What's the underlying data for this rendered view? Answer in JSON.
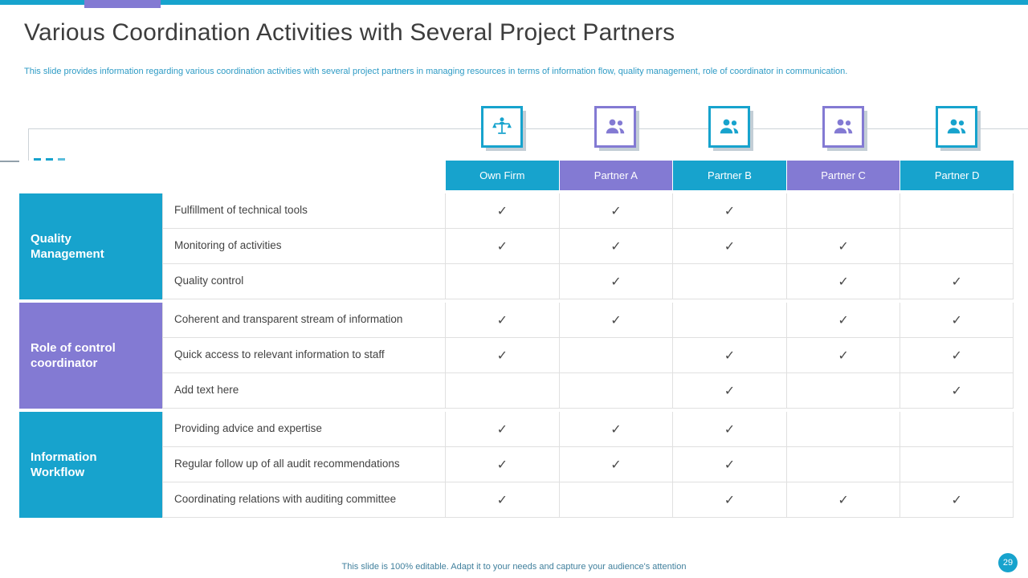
{
  "slide": {
    "title": "Various Coordination Activities with Several Project Partners",
    "subtitle": "This slide provides information regarding various coordination activities with several project partners in managing resources in terms of information flow, quality management, role of coordinator in communication.",
    "footer": "This slide is 100% editable. Adapt it to your needs and capture your audience's attention",
    "page_number": "29"
  },
  "colors": {
    "teal": "#17A3CD",
    "purple": "#837AD3",
    "subtitle_text": "#2E9BC5",
    "grid_line": "#E0E0E0",
    "check": "#4A4A4A"
  },
  "table": {
    "check_glyph": "✓",
    "columns": [
      {
        "label": "Own Firm",
        "color": "teal",
        "icon": "person-scale-icon"
      },
      {
        "label": "Partner A",
        "color": "purple",
        "icon": "people-icon"
      },
      {
        "label": "Partner B",
        "color": "teal",
        "icon": "people-icon"
      },
      {
        "label": "Partner C",
        "color": "purple",
        "icon": "people-icon"
      },
      {
        "label": "Partner D",
        "color": "teal",
        "icon": "people-icon"
      }
    ],
    "groups": [
      {
        "label": "Quality Management",
        "color": "teal",
        "rows": [
          {
            "activity": "Fulfillment of technical tools",
            "checks": [
              true,
              true,
              true,
              false,
              false
            ]
          },
          {
            "activity": "Monitoring of activities",
            "checks": [
              true,
              true,
              true,
              true,
              false
            ]
          },
          {
            "activity": "Quality control",
            "checks": [
              false,
              true,
              false,
              true,
              true
            ]
          }
        ]
      },
      {
        "label": "Role of control coordinator",
        "color": "purple",
        "rows": [
          {
            "activity": "Coherent and transparent stream of information",
            "checks": [
              true,
              true,
              false,
              true,
              true
            ]
          },
          {
            "activity": "Quick access to relevant information to staff",
            "checks": [
              true,
              false,
              true,
              true,
              true
            ]
          },
          {
            "activity": "Add text here",
            "checks": [
              false,
              false,
              true,
              false,
              true
            ]
          }
        ]
      },
      {
        "label": "Information Workflow",
        "color": "teal",
        "rows": [
          {
            "activity": "Providing advice and expertise",
            "checks": [
              true,
              true,
              true,
              false,
              false
            ]
          },
          {
            "activity": "Regular follow up of all audit recommendations",
            "checks": [
              true,
              true,
              true,
              false,
              false
            ]
          },
          {
            "activity": "Coordinating relations with auditing committee",
            "checks": [
              true,
              false,
              true,
              true,
              true
            ]
          }
        ]
      }
    ]
  }
}
